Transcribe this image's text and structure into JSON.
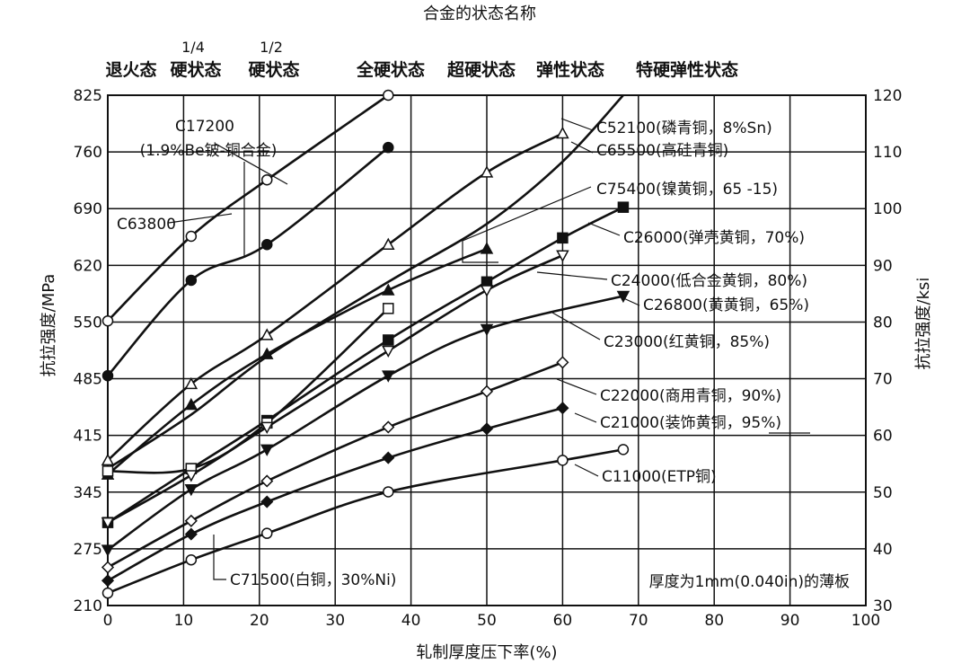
{
  "chart_data": {
    "type": "line",
    "title": "合金的状态名称",
    "xlabel": "轧制厚度压下率(%)",
    "ylabel_left": "抗拉强度/MPa",
    "ylabel_right": "抗拉强度/ksi",
    "xlim": [
      0,
      100
    ],
    "ylim": [
      210,
      825
    ],
    "ylim_right": [
      30,
      120
    ],
    "x_ticks": [
      "0",
      "10",
      "20",
      "30",
      "40",
      "50",
      "60",
      "70",
      "80",
      "90",
      "100"
    ],
    "y_ticks": [
      "825",
      "760",
      "690",
      "620",
      "550",
      "485",
      "415",
      "345",
      "275",
      "210"
    ],
    "y_right_ticks": [
      "120",
      "110",
      "100",
      "90",
      "80",
      "70",
      "60",
      "50",
      "40",
      "30"
    ],
    "grid": true,
    "tempers": [
      {
        "top": "",
        "bottom": "退火态",
        "x": 0
      },
      {
        "top": "1/4",
        "bottom": "硬状态",
        "x": 10.5
      },
      {
        "top": "1/2",
        "bottom": "硬状态",
        "x": 21
      },
      {
        "top": "",
        "bottom": "全硬状态",
        "x": 37
      },
      {
        "top": "",
        "bottom": "超硬状态",
        "x": 50
      },
      {
        "top": "",
        "bottom": "弹性状态",
        "x": 60
      },
      {
        "top": "",
        "bottom": "特硬弹性状态",
        "x": 68
      }
    ],
    "note": "厚度为1mm(0.040in)的薄板",
    "series": [
      {
        "name": "C17200 (1.9%Be铍-铜合金)",
        "marker": "filled-circle",
        "x": [
          0,
          11,
          21,
          37
        ],
        "y": [
          487,
          602,
          645,
          762
        ]
      },
      {
        "name": "C63800",
        "marker": "open-circle",
        "x": [
          0,
          11,
          21,
          37
        ],
        "y": [
          553,
          655,
          723,
          825
        ]
      },
      {
        "name": "C52100(磷青铜，8%Sn)",
        "marker": "none",
        "x": [
          0,
          11,
          21,
          37,
          50,
          60,
          68
        ],
        "y": [
          375,
          440,
          510,
          600,
          670,
          745,
          825
        ]
      },
      {
        "name": "C65500(高硅青铜)",
        "marker": "open-triangle",
        "x": [
          0,
          11,
          21,
          37,
          50,
          60
        ],
        "y": [
          385,
          477,
          536,
          645,
          732,
          779
        ]
      },
      {
        "name": "C75400(镍黄铜，65-15)",
        "marker": "filled-triangle",
        "x": [
          0,
          11,
          21,
          37,
          50
        ],
        "y": [
          368,
          452,
          513,
          590,
          640
        ]
      },
      {
        "name": "C26000(弹壳黄铜，70%)",
        "marker": "filled-square",
        "x": [
          0,
          11,
          21,
          37,
          50,
          60,
          68
        ],
        "y": [
          310,
          375,
          433,
          530,
          600,
          653,
          690
        ]
      },
      {
        "name": "C24000(低合金黄铜，80%)",
        "marker": "open-square",
        "x": [
          0,
          11,
          21,
          37
        ],
        "y": [
          372,
          375,
          430,
          568
        ]
      },
      {
        "name": "C26800(黄黄铜，65%)",
        "marker": "open-inverted-triangle",
        "x": [
          0,
          11,
          21,
          37,
          50,
          60
        ],
        "y": [
          310,
          367,
          425,
          517,
          590,
          632
        ]
      },
      {
        "name": "C23000(红黄铜，85%)",
        "marker": "filled-inverted-triangle",
        "x": [
          0,
          11,
          21,
          37,
          50,
          68
        ],
        "y": [
          277,
          350,
          398,
          487,
          543,
          583
        ]
      },
      {
        "name": "C22000(商用青铜，90%)",
        "marker": "open-diamond",
        "x": [
          0,
          11,
          21,
          37,
          50,
          60
        ],
        "y": [
          256,
          312,
          360,
          425,
          468,
          503
        ]
      },
      {
        "name": "C21000(装饰黄铜，95%)",
        "marker": "filled-diamond",
        "x": [
          0,
          11,
          21,
          37,
          50,
          60
        ],
        "y": [
          240,
          296,
          335,
          388,
          423,
          448
        ]
      },
      {
        "name": "C11000(ETP铜)",
        "marker": "open-circle",
        "x": [
          0,
          11,
          21,
          37,
          60,
          68
        ],
        "y": [
          225,
          265,
          297,
          347,
          385,
          398
        ]
      },
      {
        "name": "C71500(白铜，30%Ni)",
        "marker": "none",
        "x": [],
        "y": []
      }
    ],
    "labels": [
      {
        "text": "C17200",
        "series": 0
      },
      {
        "text": "(1.9%Be铍-铜合金)",
        "series": 0
      },
      {
        "text": "C63800",
        "series": 1
      },
      {
        "text": "C52100(磷青铜，8%Sn)",
        "series": 2
      },
      {
        "text": "C65500(高硅青铜)",
        "series": 3
      },
      {
        "text": "C75400(镍黄铜，65 -15)",
        "series": 4
      },
      {
        "text": "C26000(弹壳黄铜，70%)",
        "series": 5
      },
      {
        "text": "C24000(低合金黄铜，80%)",
        "series": 6
      },
      {
        "text": "C26800(黄黄铜，65%)",
        "series": 7
      },
      {
        "text": "C23000(红黄铜，85%)",
        "series": 8
      },
      {
        "text": "C22000(商用青铜，90%)",
        "series": 9
      },
      {
        "text": "C21000(装饰黄铜，95%)",
        "series": 10
      },
      {
        "text": "C11000(ETP铜)",
        "series": 11
      },
      {
        "text": "C71500(白铜，30%Ni)",
        "series": 12
      }
    ]
  }
}
